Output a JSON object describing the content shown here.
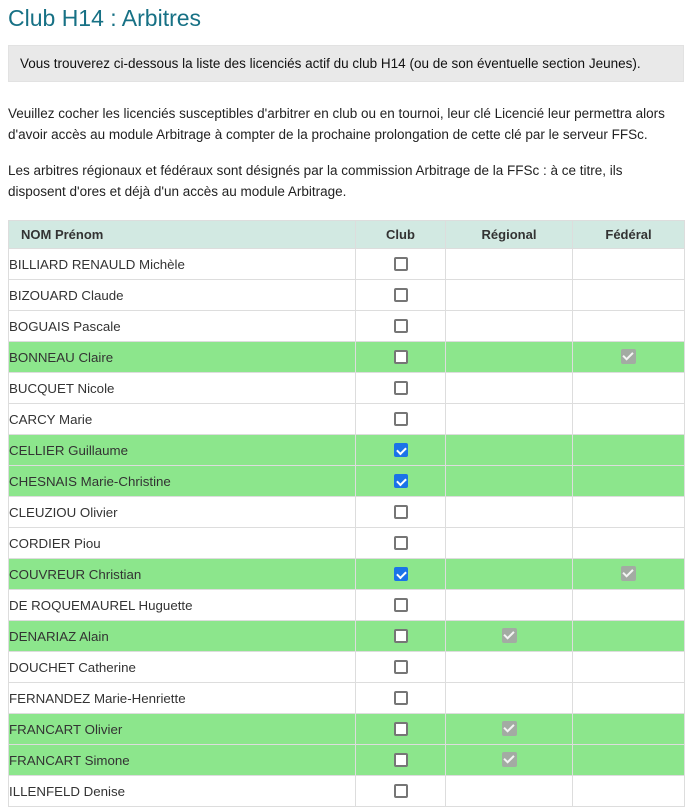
{
  "header": {
    "title": "Club H14 : Arbitres"
  },
  "intro": {
    "notice": "Vous trouverez ci-dessous la liste des licenciés actif du club H14 (ou de son éventuelle section Jeunes).",
    "paragraph_cocher": "Veuillez cocher les licenciés susceptibles d'arbitrer en club ou en tournoi, leur clé Licencié leur permettra alors d'avoir accès au module Arbitrage à compter de la prochaine prolongation de cette clé par le serveur FFSc.",
    "paragraph_arbitres": "Les arbitres régionaux et fédéraux sont désignés par la commission Arbitrage de la FFSc : à ce titre, ils disposent d'ores et déjà d'un accès au module Arbitrage."
  },
  "table": {
    "columns": [
      "NOM Prénom",
      "Club",
      "Régional",
      "Fédéral"
    ],
    "rows": [
      {
        "name": "BILLIARD RENAULD Michèle",
        "highlighted": false,
        "club": false,
        "regional": false,
        "federal": false
      },
      {
        "name": "BIZOUARD Claude",
        "highlighted": false,
        "club": false,
        "regional": false,
        "federal": false
      },
      {
        "name": "BOGUAIS Pascale",
        "highlighted": false,
        "club": false,
        "regional": false,
        "federal": false
      },
      {
        "name": "BONNEAU Claire",
        "highlighted": true,
        "club": false,
        "regional": false,
        "federal": true
      },
      {
        "name": "BUCQUET Nicole",
        "highlighted": false,
        "club": false,
        "regional": false,
        "federal": false
      },
      {
        "name": "CARCY Marie",
        "highlighted": false,
        "club": false,
        "regional": false,
        "federal": false
      },
      {
        "name": "CELLIER Guillaume",
        "highlighted": true,
        "club": true,
        "regional": false,
        "federal": false
      },
      {
        "name": "CHESNAIS Marie-Christine",
        "highlighted": true,
        "club": true,
        "regional": false,
        "federal": false
      },
      {
        "name": "CLEUZIOU Olivier",
        "highlighted": false,
        "club": false,
        "regional": false,
        "federal": false
      },
      {
        "name": "CORDIER Piou",
        "highlighted": false,
        "club": false,
        "regional": false,
        "federal": false
      },
      {
        "name": "COUVREUR Christian",
        "highlighted": true,
        "club": true,
        "regional": false,
        "federal": true
      },
      {
        "name": "DE ROQUEMAUREL Huguette",
        "highlighted": false,
        "club": false,
        "regional": false,
        "federal": false
      },
      {
        "name": "DENARIAZ Alain",
        "highlighted": true,
        "club": false,
        "regional": true,
        "federal": false
      },
      {
        "name": "DOUCHET Catherine",
        "highlighted": false,
        "club": false,
        "regional": false,
        "federal": false
      },
      {
        "name": "FERNANDEZ Marie-Henriette",
        "highlighted": false,
        "club": false,
        "regional": false,
        "federal": false
      },
      {
        "name": "FRANCART Olivier",
        "highlighted": true,
        "club": false,
        "regional": true,
        "federal": false
      },
      {
        "name": "FRANCART Simone",
        "highlighted": true,
        "club": false,
        "regional": true,
        "federal": false
      },
      {
        "name": "ILLENFELD Denise",
        "highlighted": false,
        "club": false,
        "regional": false,
        "federal": false
      }
    ]
  },
  "colors": {
    "title_text": "#177185",
    "table_header_bg": "#d2e9e2",
    "highlight_row_bg": "#8ce68c",
    "checkbox_checked": "#1a73e8",
    "checkbox_disabled": "#a3aba3",
    "notice_bg": "#e9e9e9",
    "table_border": "#dddddd"
  }
}
